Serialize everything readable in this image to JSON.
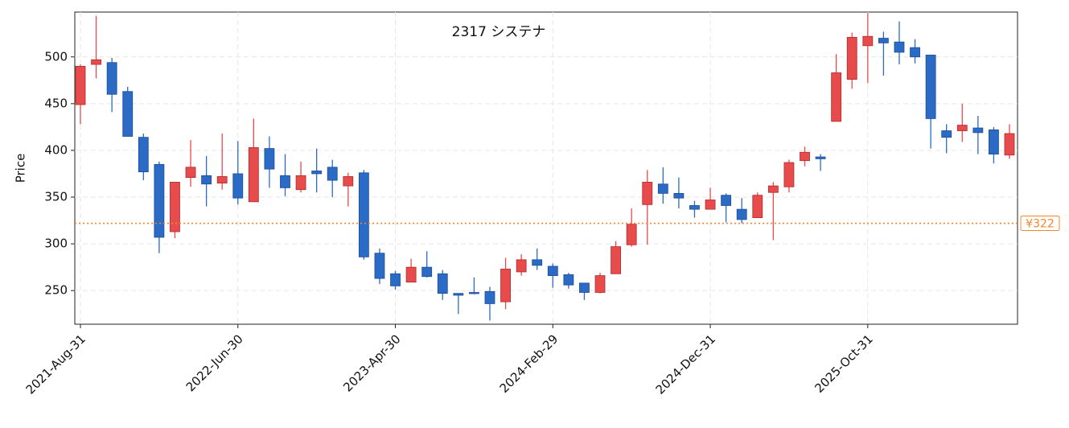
{
  "chart_data": {
    "type": "candlestick",
    "title": "2317  システナ",
    "y_label": "Price",
    "categories": [
      "2021-Aug-31",
      null,
      null,
      null,
      null,
      null,
      null,
      null,
      null,
      null,
      "2022-Jun-30",
      null,
      null,
      null,
      null,
      null,
      null,
      null,
      null,
      null,
      "2023-Apr-30",
      null,
      null,
      null,
      null,
      null,
      null,
      null,
      null,
      null,
      "2024-Feb-29",
      null,
      null,
      null,
      null,
      null,
      null,
      null,
      null,
      null,
      "2024-Dec-31",
      null,
      null,
      null,
      null,
      null,
      null,
      null,
      null,
      null,
      "2025-Oct-31",
      null,
      null,
      null,
      null,
      null,
      null,
      null,
      null,
      null
    ],
    "open": [
      449,
      492,
      494,
      463,
      414,
      385,
      313,
      371,
      373,
      365,
      375,
      345,
      402,
      373,
      358,
      378,
      382,
      362,
      376,
      290,
      268,
      259,
      275,
      268,
      247,
      248,
      249,
      238,
      270,
      283,
      276,
      267,
      258,
      248,
      268,
      299,
      342,
      364,
      354,
      341,
      337,
      352,
      337,
      328,
      355,
      361,
      389,
      393,
      431,
      476,
      512,
      520,
      516,
      510,
      502,
      421,
      421,
      424,
      422,
      395
    ],
    "high": [
      492,
      544,
      499,
      468,
      418,
      388,
      366,
      411,
      394,
      418,
      410,
      434,
      415,
      396,
      388,
      402,
      390,
      376,
      379,
      295,
      271,
      284,
      292,
      272,
      247,
      264,
      254,
      285,
      289,
      295,
      279,
      269,
      258,
      269,
      303,
      338,
      379,
      382,
      371,
      346,
      360,
      354,
      349,
      355,
      366,
      390,
      404,
      396,
      503,
      526,
      547,
      527,
      538,
      519,
      502,
      428,
      450,
      437,
      425,
      428
    ],
    "low": [
      428,
      477,
      441,
      415,
      368,
      290,
      306,
      361,
      340,
      358,
      342,
      345,
      360,
      351,
      355,
      355,
      350,
      340,
      283,
      257,
      251,
      259,
      264,
      240,
      225,
      246,
      218,
      230,
      266,
      272,
      253,
      252,
      240,
      247,
      268,
      297,
      299,
      343,
      338,
      328,
      337,
      323,
      322,
      328,
      304,
      355,
      383,
      378,
      431,
      466,
      472,
      480,
      492,
      493,
      402,
      397,
      409,
      396,
      386,
      391
    ],
    "close": [
      490,
      497,
      460,
      415,
      377,
      307,
      366,
      382,
      364,
      372,
      349,
      403,
      380,
      360,
      373,
      375,
      368,
      372,
      286,
      263,
      255,
      275,
      265,
      247,
      245,
      247,
      236,
      273,
      283,
      277,
      266,
      256,
      248,
      266,
      297,
      321,
      366,
      354,
      349,
      337,
      347,
      341,
      326,
      352,
      362,
      387,
      398,
      391,
      483,
      521,
      522,
      515,
      505,
      500,
      434,
      414,
      427,
      419,
      396,
      418
    ],
    "up_color": "#e84b4b",
    "down_color": "#2b6bc6",
    "ylim": [
      214,
      548
    ],
    "yticks": [
      250,
      300,
      350,
      400,
      450,
      500
    ],
    "grid": true,
    "hlines": [
      {
        "value": 322,
        "label": "¥322",
        "color": "#f5862b"
      }
    ]
  }
}
